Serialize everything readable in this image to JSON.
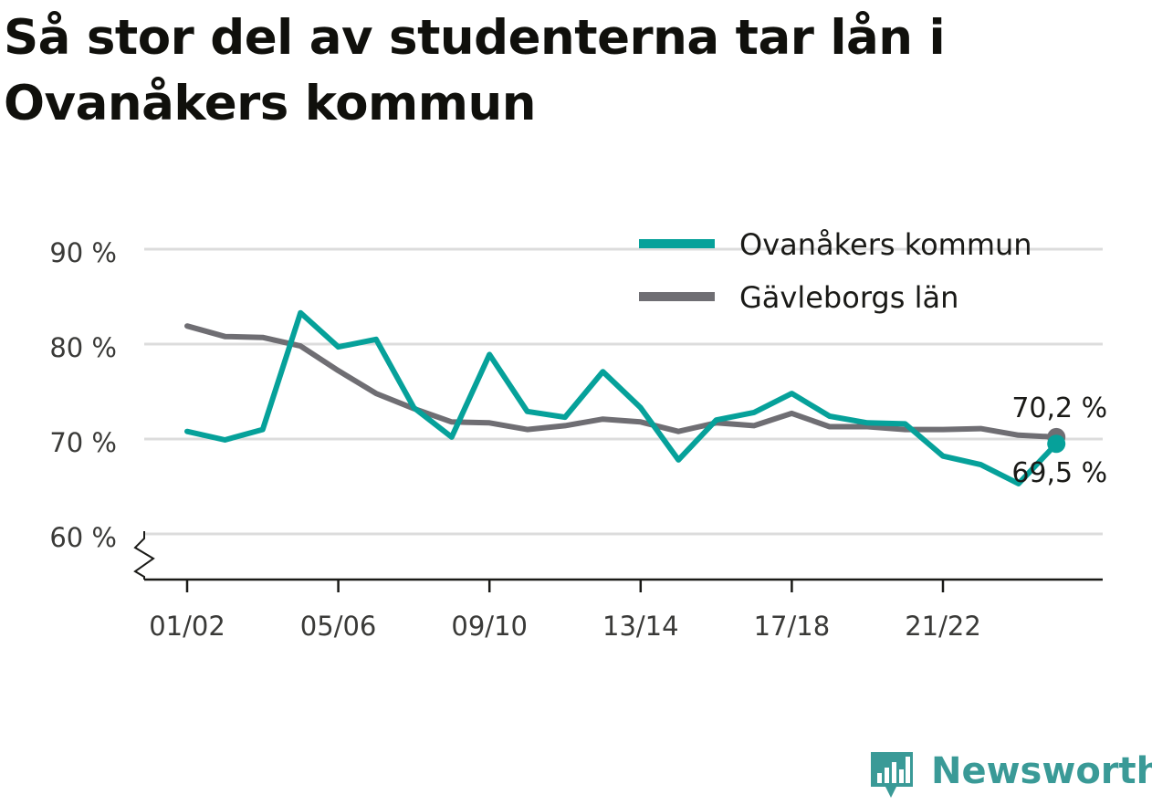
{
  "title": "Så stor del av studenterna tar lån i Ovanåkers kommun",
  "brand": {
    "name": "Newsworthy",
    "logo_icon": "newsworthy-logo-icon",
    "color": "#3a9a97"
  },
  "chart_data": {
    "type": "line",
    "x": [
      "01/02",
      "02/03",
      "03/04",
      "04/05",
      "05/06",
      "06/07",
      "07/08",
      "08/09",
      "09/10",
      "10/11",
      "11/12",
      "12/13",
      "13/14",
      "14/15",
      "15/16",
      "16/17",
      "17/18",
      "18/19",
      "19/20",
      "20/21",
      "21/22",
      "22/23",
      "23/24",
      "24/25"
    ],
    "x_tick_labels": [
      "01/02",
      "05/06",
      "09/10",
      "13/14",
      "17/18",
      "21/22"
    ],
    "y_tick_labels": [
      "60 %",
      "70 %",
      "80 %",
      "90 %"
    ],
    "y_ticks": [
      60,
      70,
      80,
      90
    ],
    "ylim": [
      55,
      93
    ],
    "y_axis_break": true,
    "grid": true,
    "legend_position": "top-right",
    "series": [
      {
        "name": "Ovanåkers kommun",
        "color": "#06a19a",
        "values": [
          70.8,
          69.9,
          71.0,
          83.3,
          79.7,
          80.5,
          73.3,
          70.2,
          78.9,
          72.9,
          72.3,
          77.1,
          73.3,
          67.8,
          72.0,
          72.8,
          74.8,
          72.4,
          71.7,
          71.6,
          68.2,
          67.3,
          65.3,
          69.5
        ],
        "end_label": "69,5 %"
      },
      {
        "name": "Gävleborgs län",
        "color": "#6f6e73",
        "values": [
          81.9,
          80.8,
          80.7,
          79.8,
          77.2,
          74.8,
          73.2,
          71.8,
          71.7,
          71.0,
          71.4,
          72.1,
          71.8,
          70.8,
          71.7,
          71.4,
          72.7,
          71.3,
          71.3,
          71.0,
          71.0,
          71.1,
          70.4,
          70.2
        ],
        "end_label": "70,2 %"
      }
    ]
  }
}
